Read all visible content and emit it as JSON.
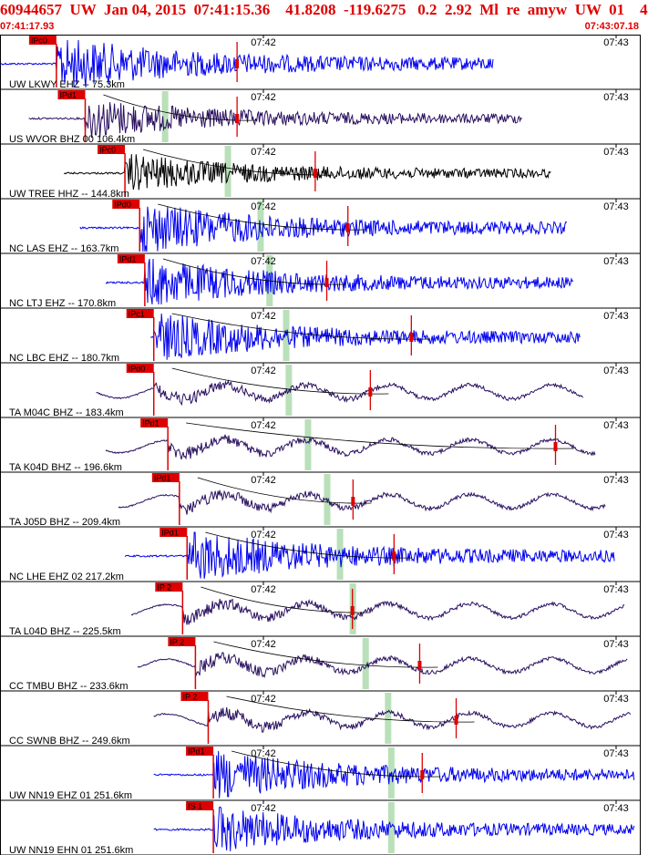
{
  "header": {
    "title": "60944657  UW  Jan 04, 2015  07:41:15.36    41.8208  -119.6275   0.2  2.92  Ml  re  amyw  UW  01    4",
    "start_time": "07:41:17.93",
    "end_time": "07:43:07.18"
  },
  "colors": {
    "background": "#ffffff",
    "frame": "#000000",
    "trace_blue": "#0000ee",
    "trace_dark": "#2a1060",
    "trace_black": "#000000",
    "pick": "#dd0000",
    "theoretical_window": "#b9e0b9",
    "time_text": "#000000",
    "title": "#e00000"
  },
  "chart_data": {
    "type": "seismogram",
    "time_ticks": [
      "07:42",
      "07:43"
    ],
    "traces": [
      {
        "label": "UW LKWY EHZ -- 75.3km",
        "pick": "IPc0",
        "color": "blue",
        "data_start": 0.0,
        "data_end": 0.77,
        "onset": 0.088,
        "amp": 1.0,
        "freq": 1.6,
        "lowfreq": false,
        "secondary_pick": 0.37,
        "window": null
      },
      {
        "label": "US WVOR BHZ 00 106.4km",
        "pick": "IPd1",
        "color": "dark",
        "data_start": 0.045,
        "data_end": 0.815,
        "onset": 0.133,
        "amp": 0.75,
        "freq": 0.6,
        "lowfreq": false,
        "secondary_pick": 0.37,
        "window": 0.257
      },
      {
        "label": "UW TREE HHZ -- 144.8km",
        "pick": "IPc0",
        "color": "black",
        "data_start": 0.1,
        "data_end": 0.86,
        "onset": 0.195,
        "amp": 0.7,
        "freq": 1.6,
        "lowfreq": false,
        "secondary_pick": 0.492,
        "window": 0.355
      },
      {
        "label": "NC LAS EHZ -- 163.7km",
        "pick": "IPd0",
        "color": "blue",
        "data_start": 0.125,
        "data_end": 0.885,
        "onset": 0.218,
        "amp": 0.95,
        "freq": 1.6,
        "lowfreq": false,
        "secondary_pick": 0.543,
        "window": 0.406
      },
      {
        "label": "NC LTJ EHZ -- 170.8km",
        "pick": "IPd1",
        "color": "blue",
        "data_start": 0.165,
        "data_end": 0.895,
        "onset": 0.226,
        "amp": 0.9,
        "freq": 1.6,
        "lowfreq": false,
        "secondary_pick": 0.51,
        "window": 0.42
      },
      {
        "label": "NC LBC EHZ -- 180.7km",
        "pick": "IPc1",
        "color": "blue",
        "data_start": 0.235,
        "data_end": 0.905,
        "onset": 0.24,
        "amp": 0.9,
        "freq": 1.6,
        "lowfreq": false,
        "secondary_pick": 0.642,
        "window": 0.446
      },
      {
        "label": "TA M04C BHZ -- 183.4km",
        "pick": "IPd0",
        "color": "dark",
        "data_start": 0.15,
        "data_end": 0.91,
        "onset": 0.24,
        "amp": 0.85,
        "freq": 0.45,
        "lowfreq": true,
        "secondary_pick": 0.578,
        "window": 0.45
      },
      {
        "label": "TA K04D BHZ -- 196.6km",
        "pick": "IPd1",
        "color": "dark",
        "data_start": 0.165,
        "data_end": 0.93,
        "onset": 0.262,
        "amp": 0.85,
        "freq": 0.45,
        "lowfreq": true,
        "secondary_pick": 0.867,
        "window": 0.48
      },
      {
        "label": "TA J05D BHZ -- 209.4km",
        "pick": "IPd1",
        "color": "dark",
        "data_start": 0.185,
        "data_end": 0.945,
        "onset": 0.28,
        "amp": 0.85,
        "freq": 0.45,
        "lowfreq": true,
        "secondary_pick": 0.551,
        "window": 0.51
      },
      {
        "label": "NC LHE EHZ 02 217.2km",
        "pick": "IPd1",
        "color": "blue",
        "data_start": 0.195,
        "data_end": 0.96,
        "onset": 0.292,
        "amp": 0.95,
        "freq": 1.6,
        "lowfreq": false,
        "secondary_pick": 0.615,
        "window": 0.53
      },
      {
        "label": "TA L04D BHZ -- 225.5km",
        "pick": "IP 2",
        "color": "dark",
        "data_start": 0.205,
        "data_end": 0.975,
        "onset": 0.285,
        "amp": 0.85,
        "freq": 0.45,
        "lowfreq": true,
        "secondary_pick": 0.55,
        "window": 0.55
      },
      {
        "label": "CC TMBU BHZ -- 233.6km",
        "pick": "IP 2",
        "color": "dark",
        "data_start": 0.215,
        "data_end": 0.98,
        "onset": 0.305,
        "amp": 0.85,
        "freq": 0.45,
        "lowfreq": true,
        "secondary_pick": 0.655,
        "window": 0.57
      },
      {
        "label": "CC SWNB BHZ -- 249.6km",
        "pick": "IP 2",
        "color": "dark",
        "data_start": 0.24,
        "data_end": 0.985,
        "onset": 0.325,
        "amp": 0.85,
        "freq": 0.45,
        "lowfreq": true,
        "secondary_pick": 0.712,
        "window": 0.605
      },
      {
        "label": "UW NN19 EHZ 01 251.6km",
        "pick": "IPd1",
        "color": "blue",
        "data_start": 0.24,
        "data_end": 0.99,
        "onset": 0.333,
        "amp": 0.9,
        "freq": 1.6,
        "lowfreq": false,
        "secondary_pick": 0.659,
        "window": 0.61
      },
      {
        "label": "UW NN19 EHN 01 251.6km",
        "pick": "IS 1",
        "color": "blue",
        "data_start": 0.24,
        "data_end": 0.99,
        "onset": 0.333,
        "amp": 0.85,
        "freq": 1.6,
        "lowfreq": false,
        "secondary_pick": null,
        "window": 0.61
      }
    ]
  }
}
